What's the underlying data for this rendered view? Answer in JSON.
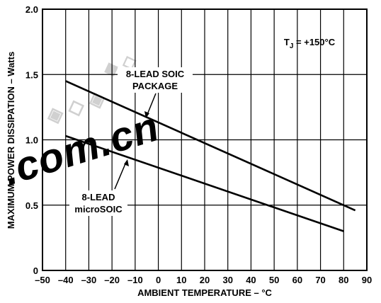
{
  "chart_data": {
    "type": "line",
    "title": "",
    "xlabel": "AMBIENT TEMPERATURE – °C",
    "ylabel": "MAXIMUM POWER DISSIPATION – Watts",
    "xlim": [
      -50,
      90
    ],
    "ylim": [
      0,
      2.0
    ],
    "x_ticks": [
      -50,
      -40,
      -30,
      -20,
      -10,
      0,
      10,
      20,
      30,
      40,
      50,
      60,
      70,
      80,
      90
    ],
    "x_tick_labels": [
      "–50",
      "–40",
      "–30",
      "–20",
      "–10",
      "0",
      "10",
      "20",
      "30",
      "40",
      "50",
      "60",
      "70",
      "80",
      "90"
    ],
    "y_ticks": [
      0,
      0.5,
      1.0,
      1.5,
      2.0
    ],
    "y_tick_labels": [
      "0",
      "0.5",
      "1.0",
      "1.5",
      "2.0"
    ],
    "grid": true,
    "condition": {
      "main": "T",
      "sub": "J",
      "rest": " = +150°C"
    },
    "series": [
      {
        "name": "8-LEAD SOIC PACKAGE",
        "label_lines": [
          "8-LEAD SOIC",
          "PACKAGE"
        ],
        "x": [
          -40,
          85
        ],
        "y": [
          1.45,
          0.46
        ]
      },
      {
        "name": "8-LEAD microSOIC",
        "label_lines": [
          "8-LEAD",
          "microSOIC"
        ],
        "x": [
          -40,
          80
        ],
        "y": [
          1.03,
          0.3
        ]
      }
    ]
  },
  "watermark": {
    "text": ".com.cn",
    "color": "#e02010"
  }
}
